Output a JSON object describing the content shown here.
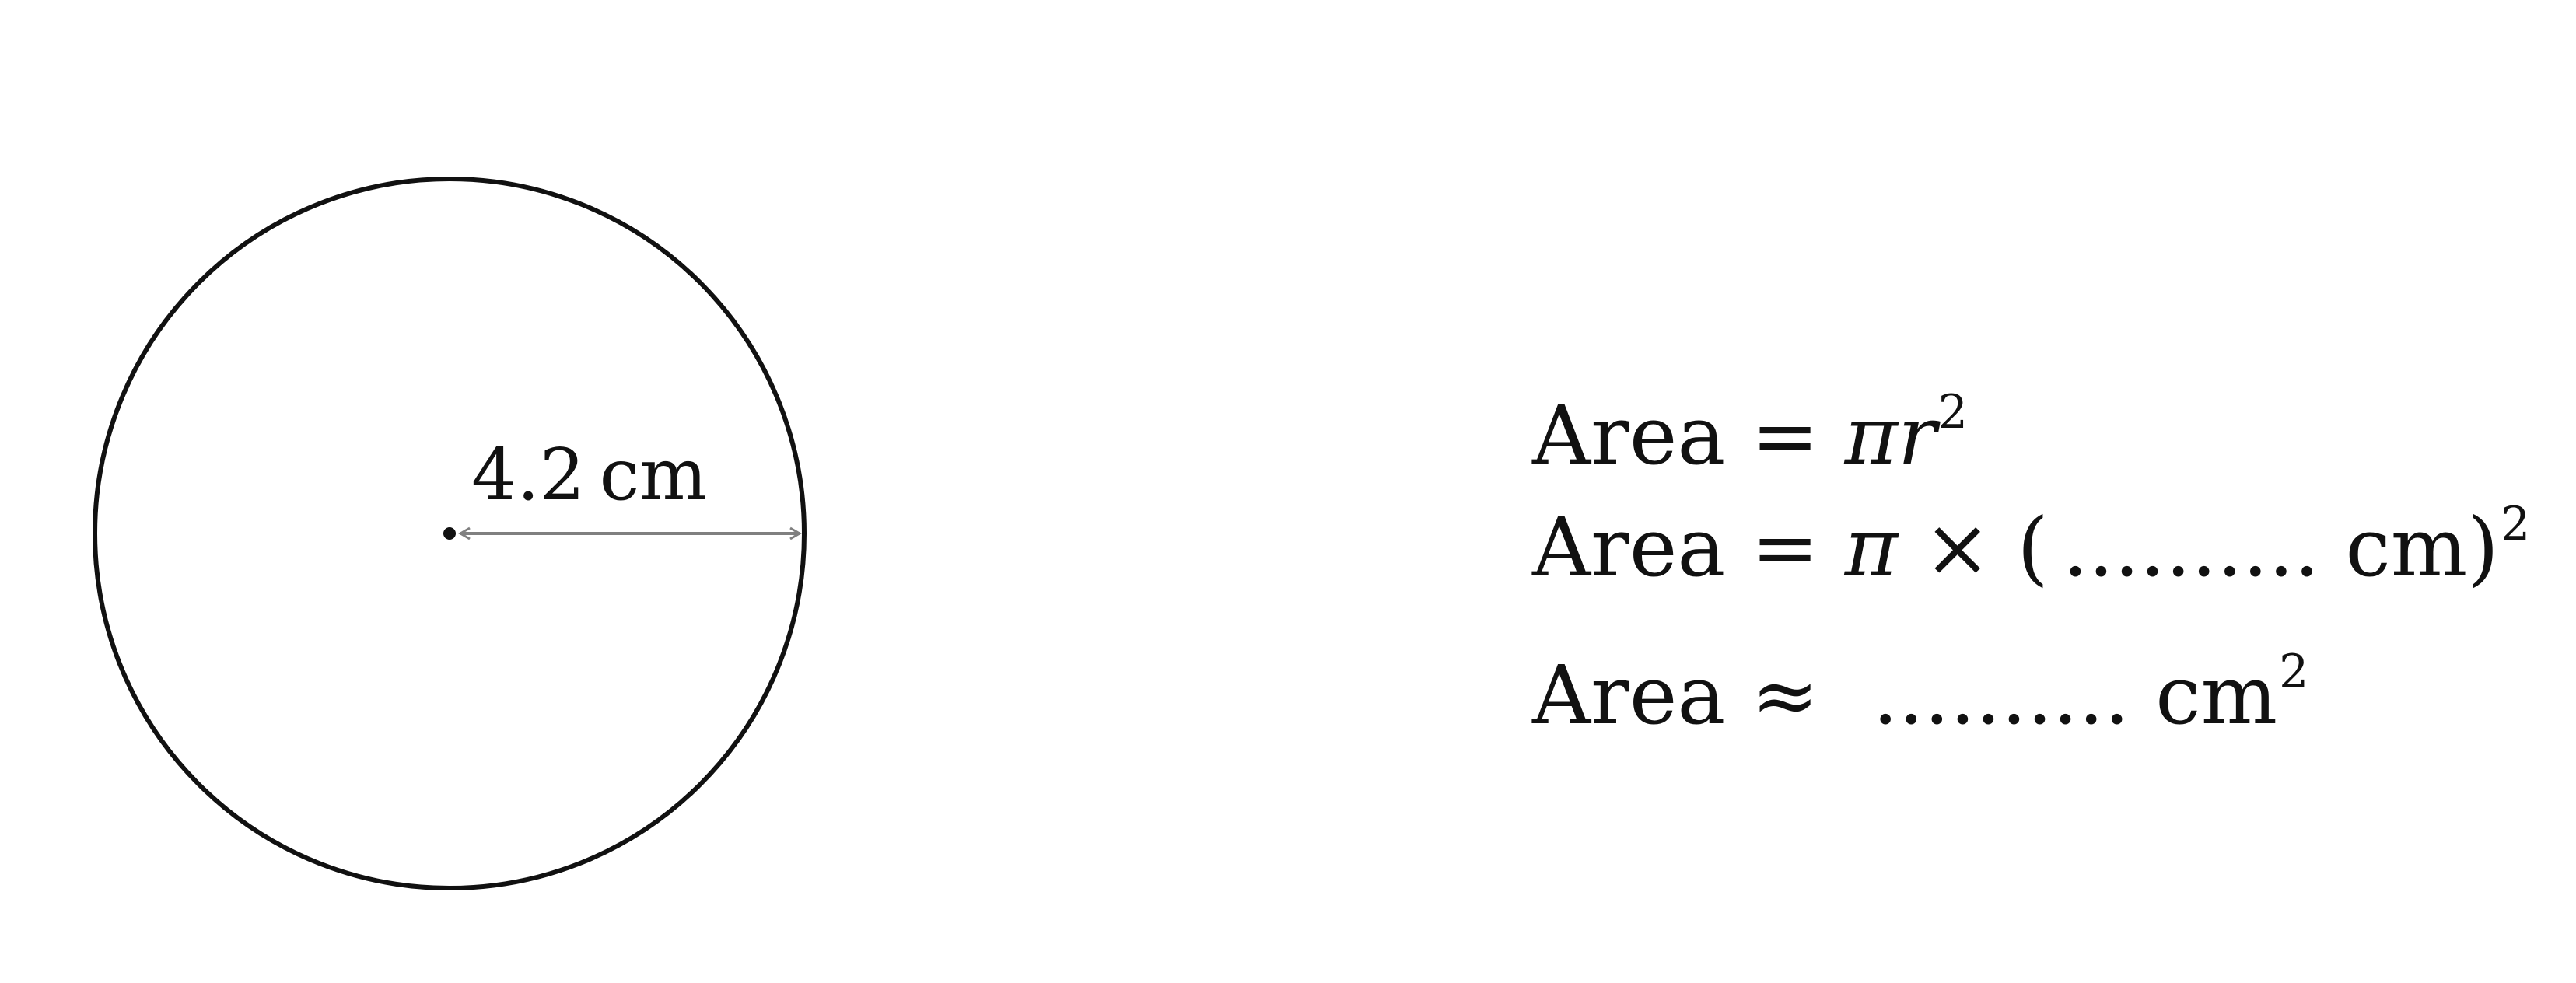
{
  "figure": {
    "radius_label": "4.2 cm",
    "line_color": "#111111",
    "arrow_color": "#808080"
  },
  "equations": {
    "line1": {
      "lhs": "Area",
      "op": "=",
      "pi": "π",
      "r": "r",
      "exp": "2"
    },
    "line2": {
      "lhs": "Area",
      "op": "=",
      "pi": "π",
      "times": "×",
      "open": "(",
      "blank": "..........",
      "unit": "cm",
      "close": ")",
      "exp": "2"
    },
    "line3": {
      "lhs": "Area",
      "op": "≈",
      "blank": "..........",
      "unit": "cm",
      "exp": "2"
    }
  }
}
